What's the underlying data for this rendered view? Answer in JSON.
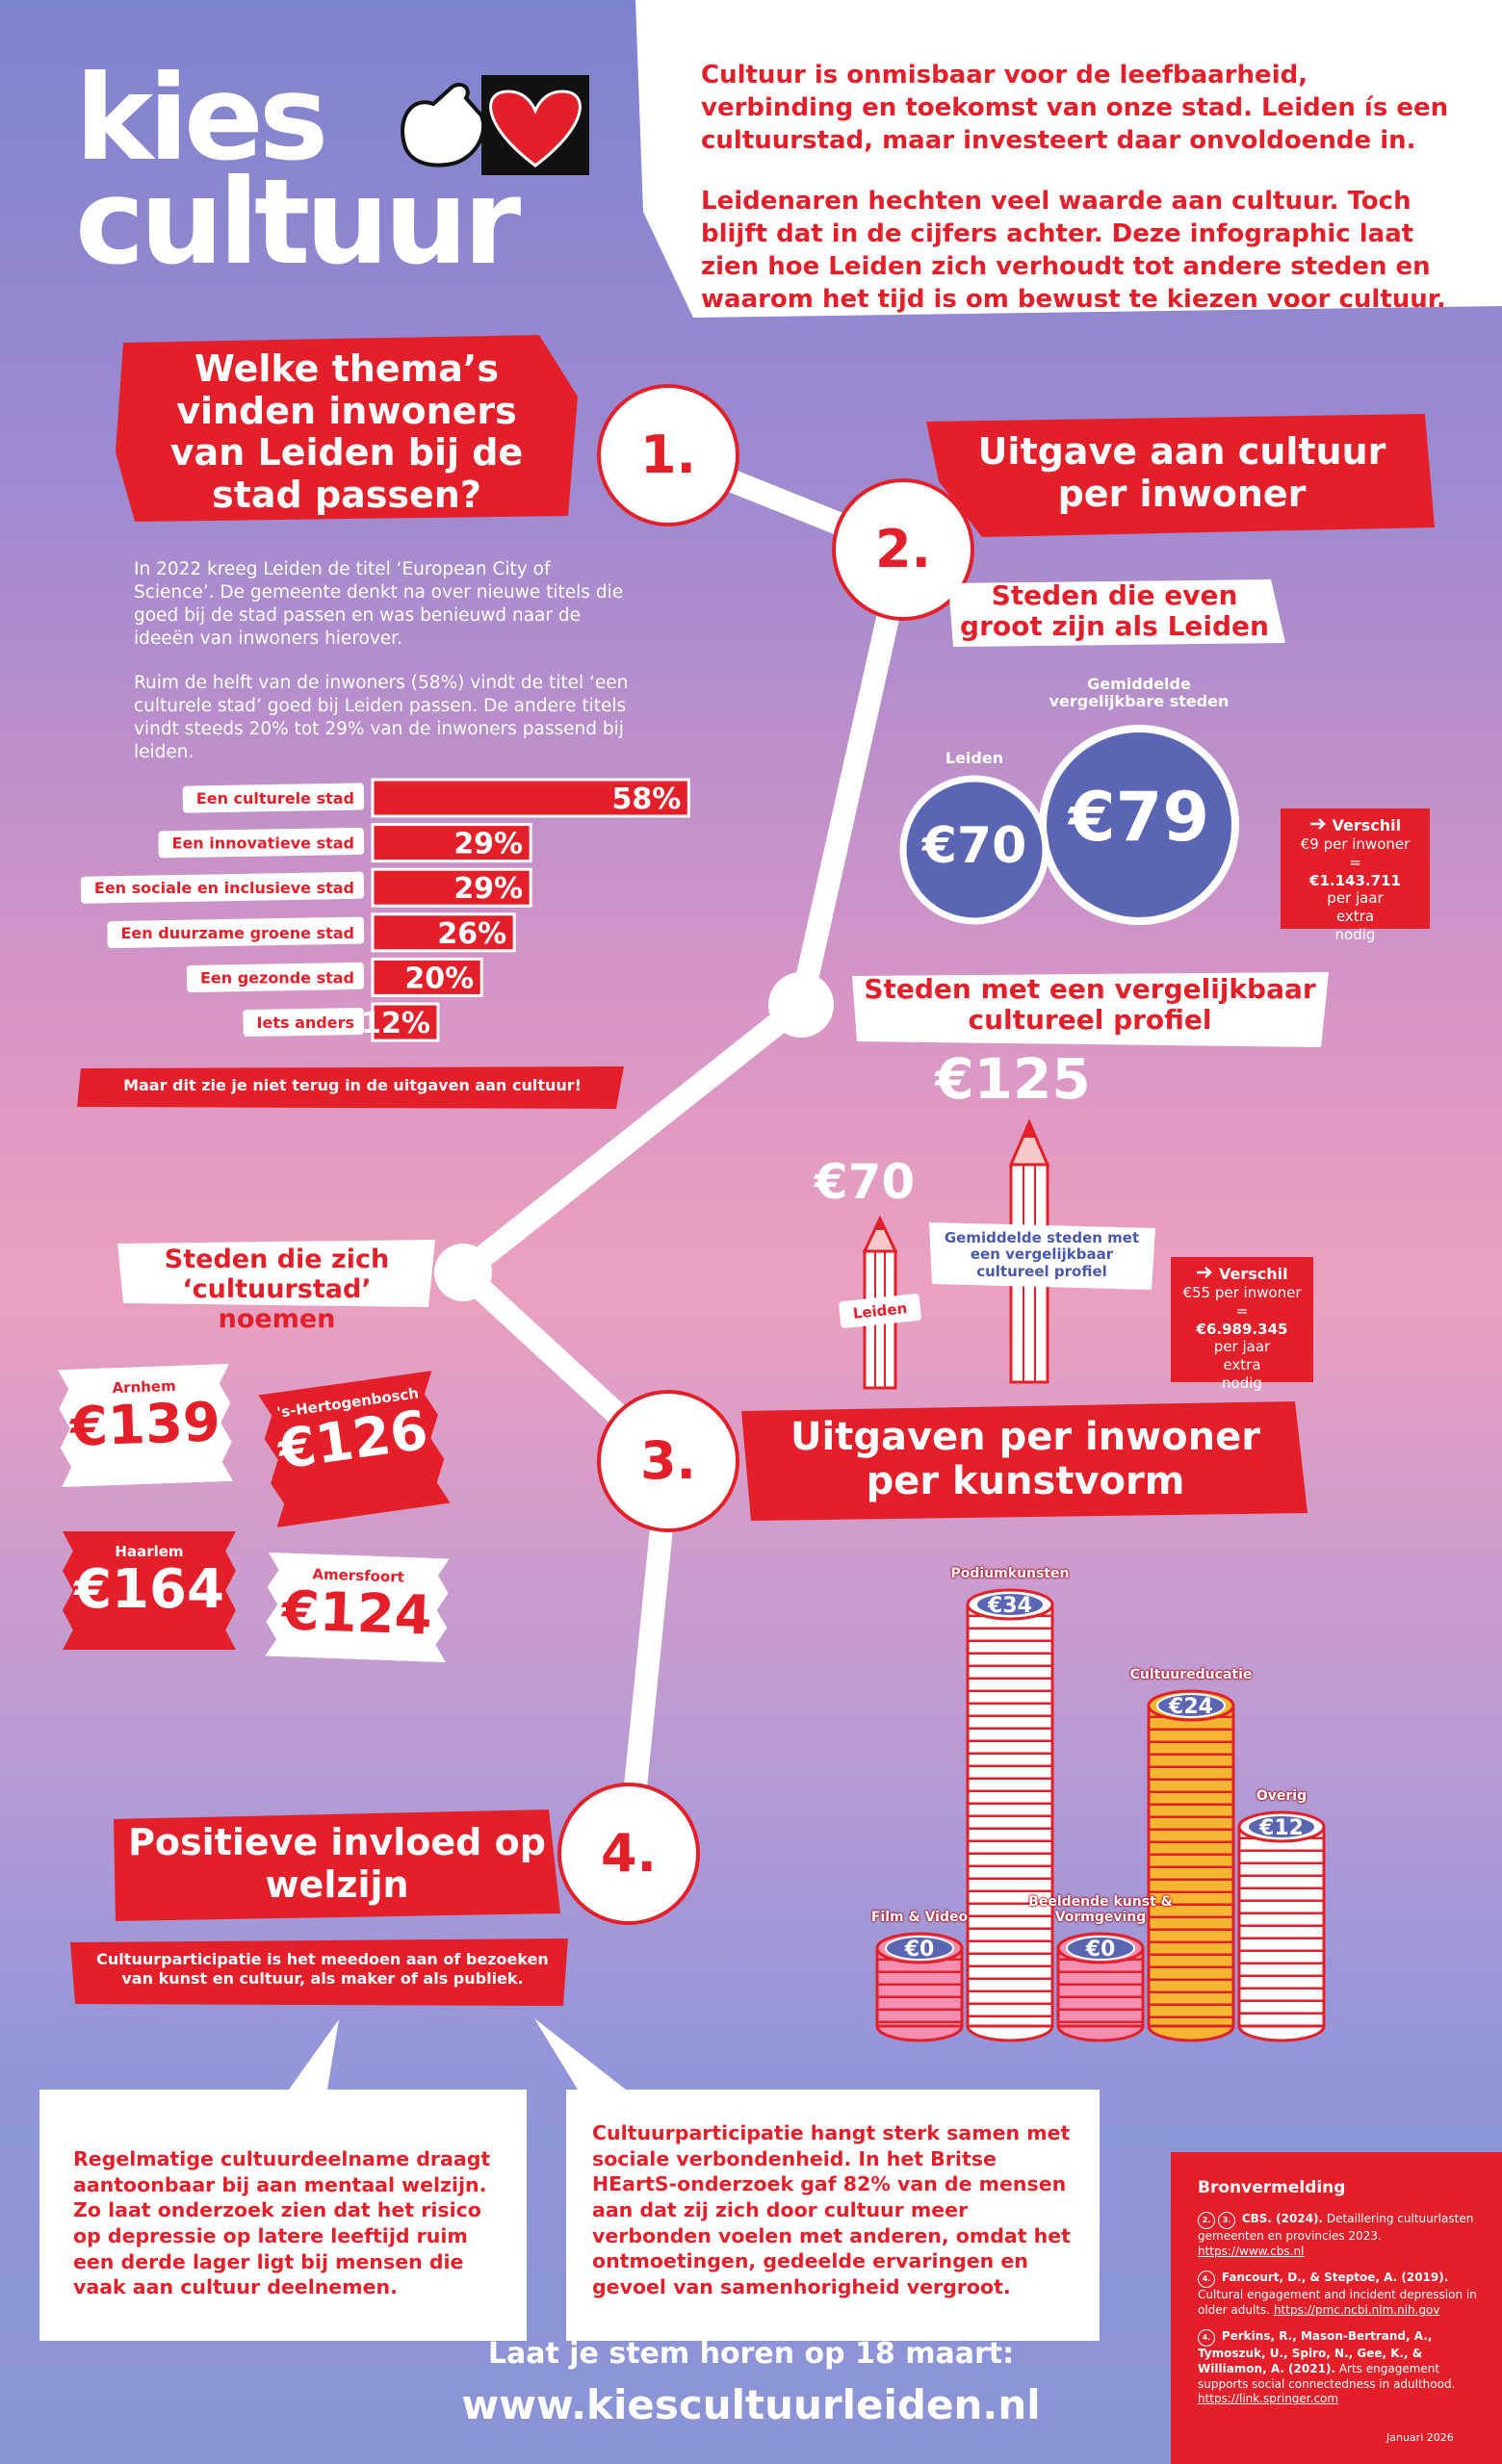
{
  "logo": {
    "line1": "kies",
    "line2": "cultuur"
  },
  "intro": {
    "paragraphs": [
      "Cultuur is onmisbaar voor de leefbaarheid, verbinding en toekomst van onze stad. Leiden ís een cultuurstad, maar investeert daar onvoldoende in.",
      "Leidenaren hechten veel waarde aan cultuur. Toch blijft dat in de cijfers achter. Deze infographic laat zien hoe Leiden zich verhoudt tot andere steden en waarom het tijd is om bewust te kiezen voor cultuur."
    ]
  },
  "section1": {
    "number": "1.",
    "title": "Welke thema’s vinden inwoners van Leiden bij de stad passen?",
    "paragraphs": [
      "In 2022 kreeg Leiden de titel  ‘European City of Science’. De gemeente denkt na over nieuwe titels die goed bij de stad passen en was benieuwd naar de ideeën van inwoners hierover.",
      "Ruim de helft van de inwoners (58%) vindt de titel ‘een culturele stad’ goed bij Leiden passen. De andere titels vindt steeds 20% tot 29% van de inwoners passend bij leiden."
    ],
    "note": "Maar dit zie je niet terug in de uitgaven aan cultuur!"
  },
  "section2": {
    "number": "2.",
    "title": "Uitgave aan cultuur per inwoner",
    "same_size": {
      "title": "Steden die even groot zijn als Leiden",
      "leiden_label": "Leiden",
      "leiden_value": "€70",
      "average_label": "Gemiddelde vergelijkbare steden",
      "average_value": "€79",
      "difference": {
        "title": "Verschil",
        "per_resident": "€9 per inwoner",
        "equals": "=",
        "total": "€1.143.711",
        "note": "per jaar extra nodig"
      }
    },
    "cultural_profile": {
      "title": "Steden met een vergelijkbaar cultureel profiel",
      "leiden_label": "Leiden",
      "leiden_value": "€70",
      "average_label": "Gemiddelde steden met een vergelijkbaar cultureel profiel",
      "average_value": "€125",
      "difference": {
        "title": "Verschil",
        "per_resident": "€55 per inwoner",
        "equals": "=",
        "total": "€6.989.345",
        "note": "per jaar extra nodig"
      }
    },
    "culture_cities": {
      "title": "Steden die zich ‘cultuurstad’ noemen",
      "cities": [
        {
          "name": "Arnhem",
          "value": "€139"
        },
        {
          "name": "'s-Hertogenbosch",
          "value": "€126"
        },
        {
          "name": "Haarlem",
          "value": "€164"
        },
        {
          "name": "Amersfoort",
          "value": "€124"
        }
      ]
    }
  },
  "section3": {
    "number": "3.",
    "title": "Uitgaven per inwoner per kunstvorm"
  },
  "section4": {
    "number": "4.",
    "title": "Positieve invloed op welzijn",
    "definition": "Cultuurparticipatie is het meedoen aan of bezoeken van kunst en cultuur, als maker of als publiek.",
    "bubbles": [
      "Regelmatige cultuurdeelname draagt aantoonbaar bij aan mentaal welzijn. Zo laat onderzoek zien dat het risico op depressie op latere leeftijd ruim een derde lager ligt bij mensen die vaak aan cultuur deelnemen.",
      "Cultuurparticipatie hangt sterk samen met sociale verbondenheid. In het Britse HEartS-onderzoek gaf 82% van de mensen aan dat zij zich door cultuur meer verbonden voelen met anderen, omdat het ontmoetingen, gedeelde ervaringen en gevoel van samenhorigheid vergroot."
    ]
  },
  "footer": {
    "call": "Laat je stem horen op 18 maart:",
    "url": "www.kiescultuurleiden.nl"
  },
  "sources": {
    "title": "Bronvermelding",
    "items": [
      {
        "badges": [
          "2.",
          "3."
        ],
        "citation": "CBS. (2024).",
        "text": "Detaillering cultuurlasten gemeenten en provincies 2023.",
        "url": "https://www.cbs.nl"
      },
      {
        "badges": [
          "4."
        ],
        "citation": "Fancourt, D., & Steptoe, A. (2019).",
        "text": "Cultural engagement and incident depression in older adults.",
        "url": "https://pmc.ncbi.nlm.nih.gov"
      },
      {
        "badges": [
          "4."
        ],
        "citation": "Perkins, R., Mason-Bertrand, A., Tymoszuk, U., Spiro, N., Gee, K., & Williamon, A. (2021).",
        "text": "Arts engagement supports social connectedness in adulthood.",
        "url": "https://link.springer.com"
      }
    ],
    "date": "Januari 2026"
  },
  "chart_data": [
    {
      "type": "bar",
      "orientation": "horizontal",
      "color": "#e3202a",
      "categories": [
        "Een culturele stad",
        "Een innovatieve stad",
        "Een sociale en inclusieve stad",
        "Een duurzame groene stad",
        "Een gezonde stad",
        "Iets anders"
      ],
      "values": [
        58,
        29,
        29,
        26,
        20,
        12
      ],
      "value_labels": [
        "58%",
        "29%",
        "29%",
        "26%",
        "20%",
        "12%"
      ]
    },
    {
      "type": "coins",
      "categories": [
        "Film & Video",
        "Podiumkunsten",
        "Beeldende kunst & Vormgeving",
        "Cultuureducatie",
        "Overig"
      ],
      "values": [
        0,
        34,
        0,
        24,
        12
      ],
      "value_labels": [
        "€0",
        "€34",
        "€0",
        "€24",
        "€12"
      ],
      "colors": [
        "#f48fb1",
        "#ffffff",
        "#f48fb1",
        "#f5b731",
        "#ffffff"
      ]
    }
  ]
}
